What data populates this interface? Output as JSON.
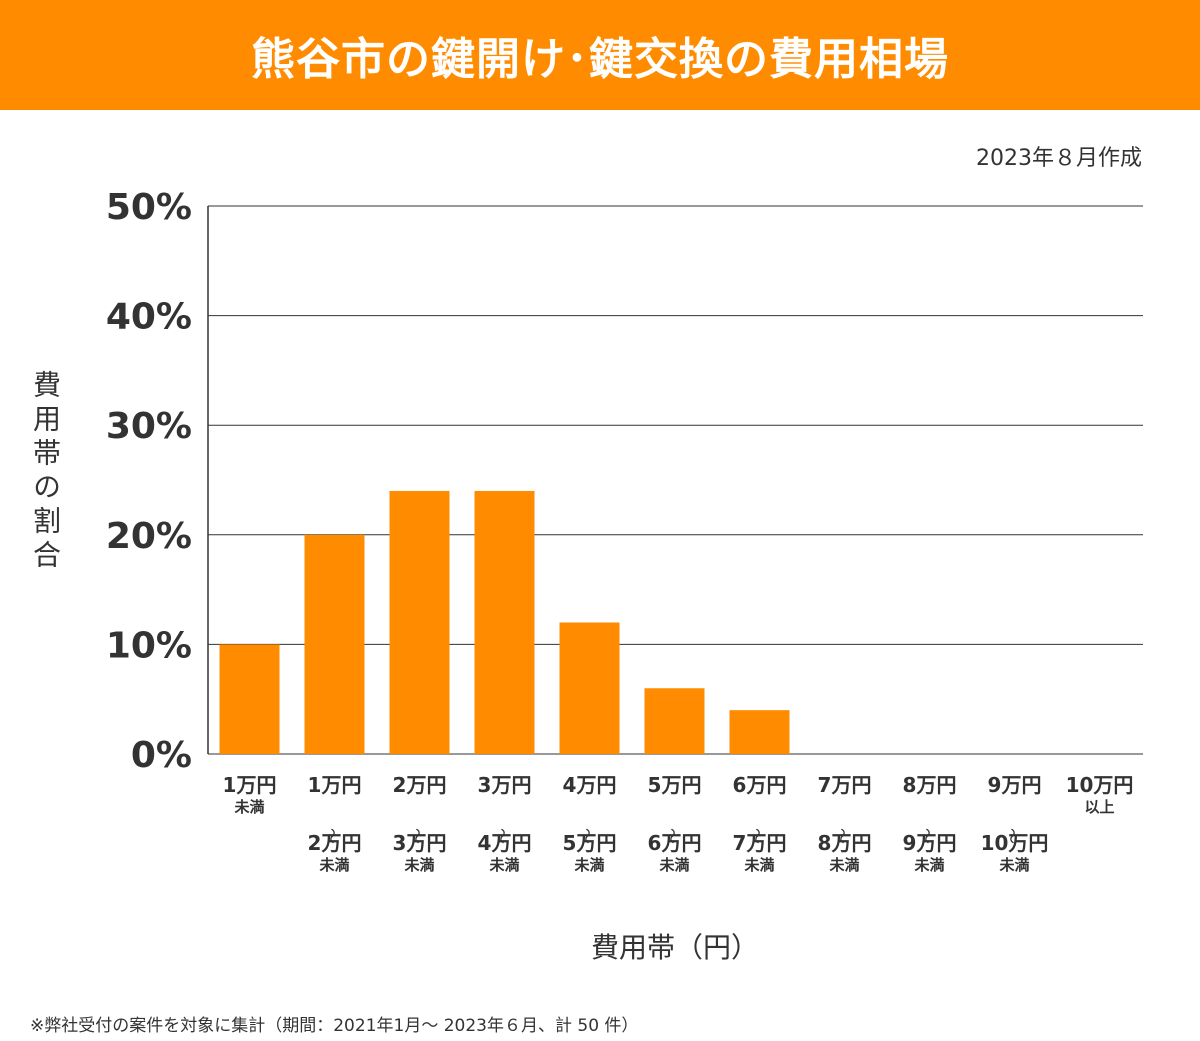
{
  "title": "熊谷市の鍵開け･鍵交換の費用相場",
  "created_note": "2023年８月作成",
  "footnote": "※弊社受付の案件を対象に集計（期間：2021年1月～ 2023年６月、計 50 件）",
  "colors": {
    "accent": "#ff8c00",
    "bar": "#ff8c00",
    "text": "#333333",
    "grid": "#333333"
  },
  "chart_data": {
    "type": "bar",
    "xlabel": "費用帯（円）",
    "ylabel": "費用帯の割合",
    "ylim": [
      0,
      50
    ],
    "yticks": [
      "0%",
      "10%",
      "20%",
      "30%",
      "40%",
      "50%"
    ],
    "grid": true,
    "categories": [
      "1万円未満",
      "1万円～2万円未満",
      "2万円～3万円未満",
      "3万円～4万円未満",
      "4万円～5万円未満",
      "5万円～6万円未満",
      "6万円～7万円未満",
      "7万円～8万円未満",
      "8万円～9万円未満",
      "9万円～10万円未満",
      "10万円以上"
    ],
    "values": [
      10,
      20,
      24,
      24,
      12,
      6,
      4,
      0,
      0,
      0,
      0
    ]
  }
}
